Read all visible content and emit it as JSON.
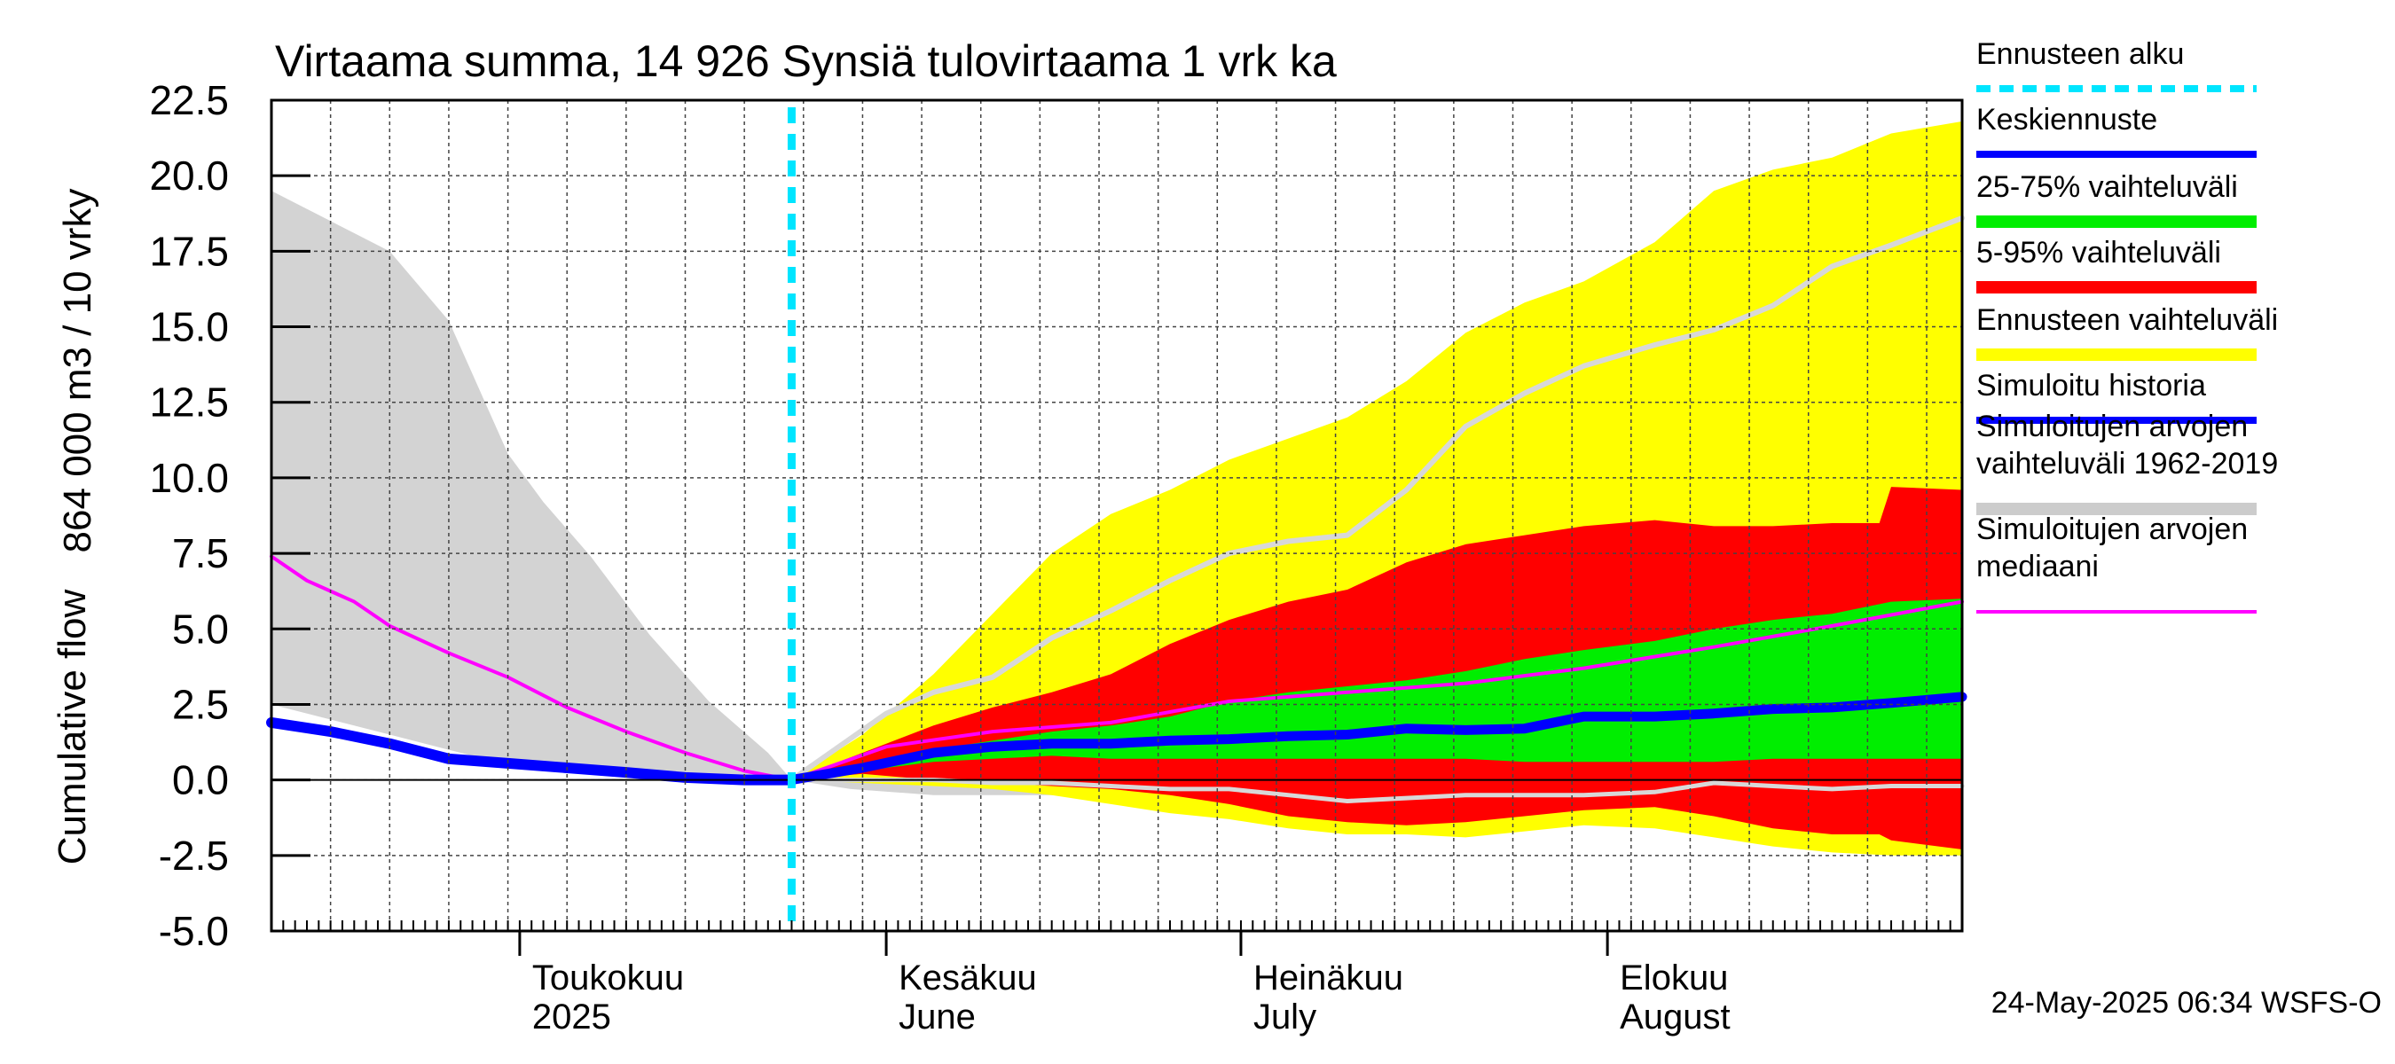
{
  "chart_data": {
    "type": "area",
    "title": "Virtaama summa, 14 926 Synsiä tulovirtaama 1 vrk ka",
    "ylabel_top": "864 000 m3 / 10 vrky",
    "ylabel_bottom": "Cumulative flow",
    "ylim": [
      -5.0,
      22.5
    ],
    "yticks": [
      "22.5",
      "20.0",
      "17.5",
      "15.0",
      "12.5",
      "10.0",
      "7.5",
      "5.0",
      "2.5",
      "0.0",
      "-2.5",
      "-5.0"
    ],
    "x_start": "2025-04-10",
    "x_end": "2025-08-31",
    "forecast_start": "2025-05-24",
    "month_labels": [
      {
        "fi": "Toukokuu",
        "en": "2025",
        "date": "2025-05-01"
      },
      {
        "fi": "Kesäkuu",
        "en": "June",
        "date": "2025-06-01"
      },
      {
        "fi": "Heinäkuu",
        "en": "July",
        "date": "2025-07-01"
      },
      {
        "fi": "Elokuu",
        "en": "August",
        "date": "2025-08-01"
      }
    ],
    "legend": [
      {
        "label": "Ennusteen alku",
        "color": "#00e5ff",
        "style": "dashed"
      },
      {
        "label": "Keskiennuste",
        "color": "#0000ff",
        "style": "line"
      },
      {
        "label": "25-75% vaihteluväli",
        "color": "#00ee00",
        "style": "band"
      },
      {
        "label": "5-95% vaihteluväli",
        "color": "#ff0000",
        "style": "band"
      },
      {
        "label": "Ennusteen vaihteluväli",
        "color": "#ffff00",
        "style": "band"
      },
      {
        "label": "Simuloitu historia",
        "color": "#0000ff",
        "style": "line"
      },
      {
        "label": "Simuloitujen arvojen vaihteluväli 1962-2019",
        "line1": "Simuloitujen arvojen",
        "line2": "vaihteluväli 1962-2019",
        "color": "#cccccc",
        "style": "band"
      },
      {
        "label": "Simuloitujen arvojen mediaani",
        "line1": "Simuloitujen arvojen",
        "line2": "mediaani",
        "color": "#ff00ff",
        "style": "line"
      }
    ],
    "footer": "24-May-2025 06:34 WSFS-O",
    "series": {
      "hist_range": {
        "x": [
          "2025-04-10",
          "2025-04-15",
          "2025-04-20",
          "2025-04-25",
          "2025-04-30",
          "2025-05-03",
          "2025-05-07",
          "2025-05-12",
          "2025-05-17",
          "2025-05-22",
          "2025-05-24",
          "2025-05-29",
          "2025-06-05",
          "2025-06-15",
          "2025-06-25",
          "2025-06-29"
        ],
        "upper": [
          19.5,
          18.5,
          17.5,
          15.2,
          10.8,
          9.2,
          7.4,
          4.8,
          2.6,
          0.9,
          0.0,
          1.0,
          1.5,
          1.6,
          1.5,
          1.5
        ],
        "lower": [
          2.5,
          2.0,
          1.5,
          1.0,
          0.5,
          0.3,
          0.2,
          0.1,
          0.0,
          -0.1,
          0.0,
          -0.3,
          -0.5,
          -0.5,
          -0.8,
          -0.8
        ]
      },
      "fc_envelope": {
        "x": [
          "2025-05-24",
          "2025-05-30",
          "2025-06-05",
          "2025-06-10",
          "2025-06-15",
          "2025-06-20",
          "2025-06-25",
          "2025-06-30",
          "2025-07-05",
          "2025-07-10",
          "2025-07-15",
          "2025-07-20",
          "2025-07-25",
          "2025-07-30",
          "2025-08-05",
          "2025-08-10",
          "2025-08-15",
          "2025-08-20",
          "2025-08-25",
          "2025-08-31"
        ],
        "upper": [
          0.0,
          1.5,
          3.5,
          5.5,
          7.5,
          8.8,
          9.6,
          10.6,
          11.3,
          12.0,
          13.2,
          14.8,
          15.8,
          16.5,
          17.8,
          19.5,
          20.2,
          20.6,
          21.4,
          21.8
        ],
        "lower": [
          0.0,
          -0.1,
          -0.2,
          -0.3,
          -0.5,
          -0.8,
          -1.1,
          -1.3,
          -1.6,
          -1.8,
          -1.8,
          -1.9,
          -1.7,
          -1.5,
          -1.6,
          -1.9,
          -2.2,
          -2.4,
          -2.5,
          -2.5
        ]
      },
      "fc_90": {
        "x": [
          "2025-05-24",
          "2025-05-30",
          "2025-06-05",
          "2025-06-10",
          "2025-06-15",
          "2025-06-20",
          "2025-06-25",
          "2025-06-30",
          "2025-07-05",
          "2025-07-10",
          "2025-07-15",
          "2025-07-20",
          "2025-07-25",
          "2025-07-30",
          "2025-08-05",
          "2025-08-10",
          "2025-08-15",
          "2025-08-20",
          "2025-08-24",
          "2025-08-25",
          "2025-08-31"
        ],
        "upper": [
          0.0,
          0.9,
          1.8,
          2.4,
          2.9,
          3.5,
          4.5,
          5.3,
          5.9,
          6.3,
          7.2,
          7.8,
          8.1,
          8.4,
          8.6,
          8.4,
          8.4,
          8.5,
          8.5,
          9.7,
          9.6
        ],
        "lower": [
          0.0,
          0.2,
          0.0,
          -0.1,
          -0.2,
          -0.3,
          -0.5,
          -0.8,
          -1.2,
          -1.4,
          -1.5,
          -1.4,
          -1.2,
          -1.0,
          -0.9,
          -1.2,
          -1.6,
          -1.8,
          -1.8,
          -2.0,
          -2.3
        ]
      },
      "fc_50": {
        "x": [
          "2025-05-24",
          "2025-05-30",
          "2025-06-05",
          "2025-06-10",
          "2025-06-15",
          "2025-06-20",
          "2025-06-25",
          "2025-06-30",
          "2025-07-05",
          "2025-07-10",
          "2025-07-15",
          "2025-07-20",
          "2025-07-25",
          "2025-07-30",
          "2025-08-05",
          "2025-08-10",
          "2025-08-15",
          "2025-08-20",
          "2025-08-25",
          "2025-08-31"
        ],
        "upper": [
          0.0,
          0.5,
          1.0,
          1.3,
          1.6,
          1.8,
          2.1,
          2.6,
          2.9,
          3.1,
          3.3,
          3.6,
          4.0,
          4.3,
          4.6,
          5.0,
          5.3,
          5.5,
          5.9,
          6.0
        ],
        "lower": [
          0.0,
          0.3,
          0.6,
          0.7,
          0.8,
          0.7,
          0.7,
          0.7,
          0.7,
          0.7,
          0.7,
          0.7,
          0.6,
          0.6,
          0.6,
          0.6,
          0.7,
          0.7,
          0.7,
          0.7
        ]
      },
      "hist_median": {
        "x": [
          "2025-04-10",
          "2025-04-13",
          "2025-04-17",
          "2025-04-20",
          "2025-04-25",
          "2025-04-30",
          "2025-05-05",
          "2025-05-10",
          "2025-05-15",
          "2025-05-20",
          "2025-05-24",
          "2025-06-01",
          "2025-06-10",
          "2025-06-20",
          "2025-06-30",
          "2025-07-10",
          "2025-07-20",
          "2025-07-30",
          "2025-08-10",
          "2025-08-20",
          "2025-08-31"
        ],
        "values": [
          7.4,
          6.6,
          5.9,
          5.1,
          4.2,
          3.4,
          2.4,
          1.6,
          0.9,
          0.3,
          0.0,
          1.1,
          1.6,
          1.9,
          2.6,
          2.9,
          3.2,
          3.7,
          4.4,
          5.1,
          5.9
        ]
      },
      "simulated_history": {
        "x": [
          "2025-04-10",
          "2025-04-15",
          "2025-04-20",
          "2025-04-25",
          "2025-04-30",
          "2025-05-05",
          "2025-05-10",
          "2025-05-15",
          "2025-05-20",
          "2025-05-24"
        ],
        "values": [
          1.9,
          1.6,
          1.2,
          0.7,
          0.55,
          0.4,
          0.25,
          0.08,
          0.0,
          0.0
        ]
      },
      "mean_forecast": {
        "x": [
          "2025-05-24",
          "2025-05-30",
          "2025-06-05",
          "2025-06-10",
          "2025-06-15",
          "2025-06-20",
          "2025-06-25",
          "2025-06-30",
          "2025-07-05",
          "2025-07-10",
          "2025-07-15",
          "2025-07-20",
          "2025-07-25",
          "2025-07-30",
          "2025-08-05",
          "2025-08-10",
          "2025-08-15",
          "2025-08-20",
          "2025-08-25",
          "2025-08-31"
        ],
        "values": [
          0.0,
          0.4,
          0.9,
          1.1,
          1.2,
          1.2,
          1.3,
          1.35,
          1.45,
          1.5,
          1.7,
          1.65,
          1.7,
          2.1,
          2.1,
          2.2,
          2.35,
          2.4,
          2.55,
          2.75
        ]
      },
      "fc_light": {
        "x": [
          "2025-05-24",
          "2025-06-01",
          "2025-06-05",
          "2025-06-10",
          "2025-06-15",
          "2025-06-20",
          "2025-06-25",
          "2025-06-30",
          "2025-07-05",
          "2025-07-10",
          "2025-07-15",
          "2025-07-20",
          "2025-07-25",
          "2025-07-30",
          "2025-08-05",
          "2025-08-10",
          "2025-08-15",
          "2025-08-20",
          "2025-08-25",
          "2025-08-31"
        ],
        "upper": [
          0.0,
          2.2,
          2.9,
          3.4,
          4.7,
          5.6,
          6.6,
          7.5,
          7.9,
          8.1,
          9.6,
          11.7,
          12.8,
          13.7,
          14.4,
          14.9,
          15.7,
          17.0,
          17.7,
          18.6
        ],
        "lower": [
          0.0,
          0.0,
          0.0,
          -0.1,
          -0.1,
          -0.2,
          -0.3,
          -0.3,
          -0.5,
          -0.7,
          -0.6,
          -0.5,
          -0.5,
          -0.5,
          -0.4,
          -0.1,
          -0.2,
          -0.3,
          -0.2,
          -0.2
        ]
      }
    }
  }
}
